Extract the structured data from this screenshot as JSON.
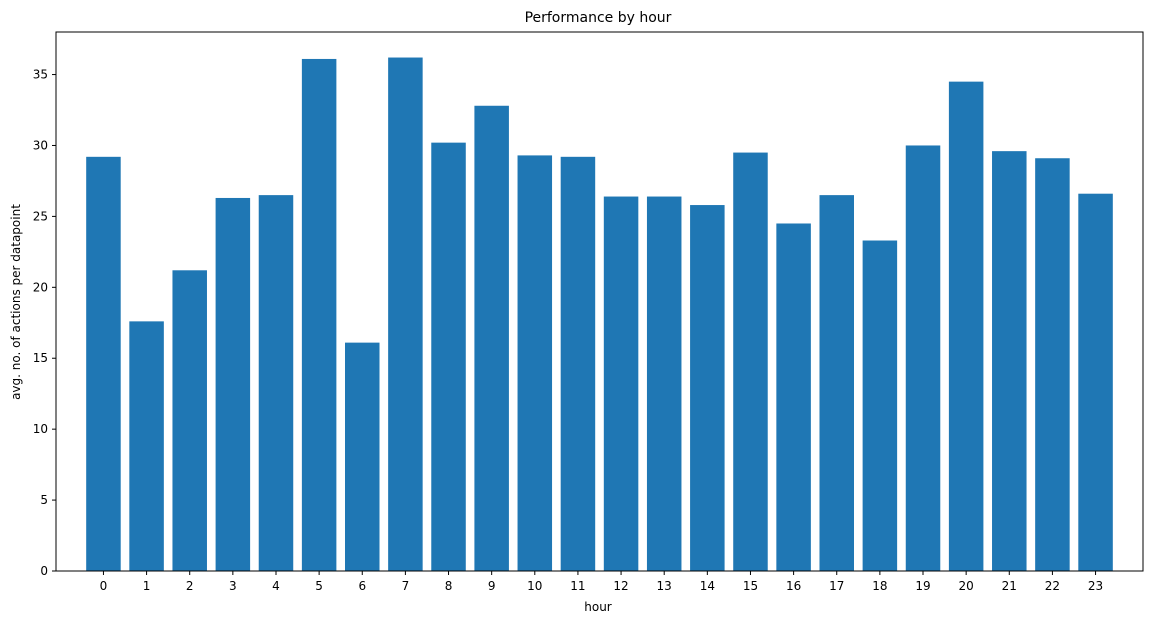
{
  "colors": {
    "bar": "#1f77b4",
    "axis": "#000000",
    "background": "#ffffff"
  },
  "chart_data": {
    "type": "bar",
    "title": "Performance by hour",
    "xlabel": "hour",
    "ylabel": "avg. no. of actions per datapoint",
    "categories": [
      "0",
      "1",
      "2",
      "3",
      "4",
      "5",
      "6",
      "7",
      "8",
      "9",
      "10",
      "11",
      "12",
      "13",
      "14",
      "15",
      "16",
      "17",
      "18",
      "19",
      "20",
      "21",
      "22",
      "23"
    ],
    "values": [
      29.2,
      17.6,
      21.2,
      26.3,
      26.5,
      36.1,
      16.1,
      36.2,
      30.2,
      32.8,
      29.3,
      29.2,
      26.4,
      26.4,
      25.8,
      29.5,
      24.5,
      26.5,
      23.3,
      30.0,
      34.5,
      29.6,
      29.1,
      26.6
    ],
    "yticks": [
      0,
      5,
      10,
      15,
      20,
      25,
      30,
      35
    ],
    "ylim": [
      0,
      38
    ],
    "grid": false,
    "legend": false
  }
}
